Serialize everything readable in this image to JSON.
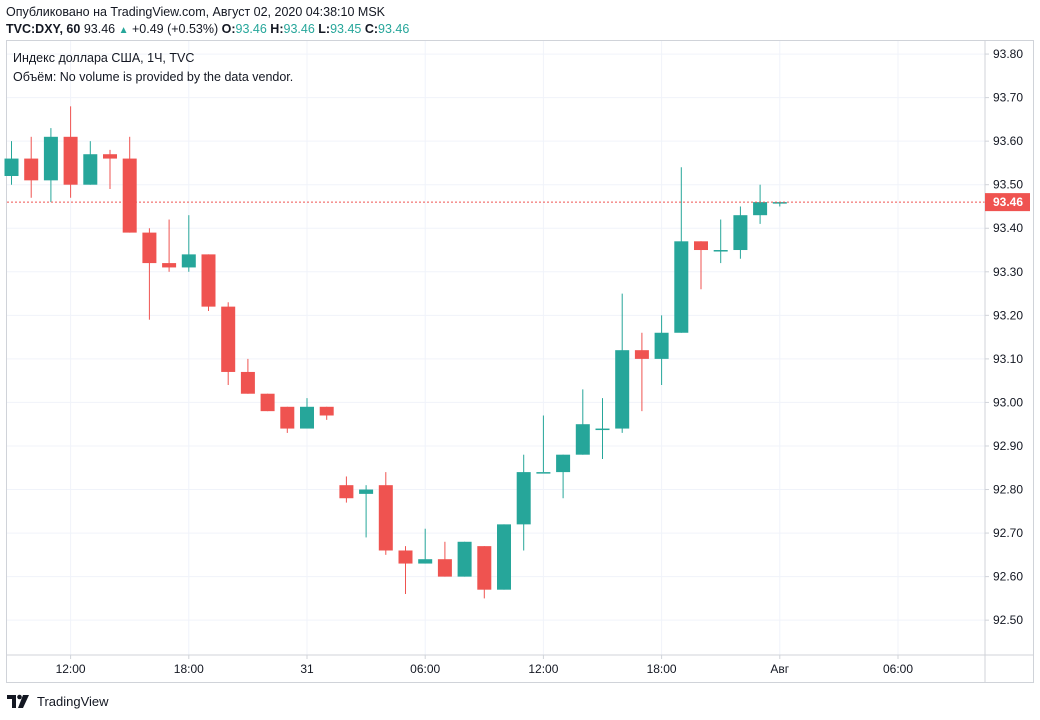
{
  "header": {
    "published": "Опубликовано на TradingView.com, Август 02, 2020 04:38:10 MSK",
    "symbol": "TVC:DXY, 60",
    "last": "93.46",
    "change": "+0.49 (+0.53%)",
    "o_label": "O:",
    "o_value": "93.46",
    "h_label": "H:",
    "h_value": "93.46",
    "l_label": "L:",
    "l_value": "93.45",
    "c_label": "C:",
    "c_value": "93.46"
  },
  "legend": {
    "series_title": "Индекс доллара США, 1Ч, TVC",
    "volume_note": "Объём: No volume is provided by the data vendor."
  },
  "footer": {
    "brand": "TradingView",
    "logo_icon": "tradingview-logo-icon"
  },
  "colors": {
    "up": "#26a69a",
    "down": "#ef5350",
    "grid": "#f0f3fa",
    "price_line": "#ef5350",
    "axis_text": "#131722"
  },
  "chart_data": {
    "type": "candlestick",
    "ylim": [
      92.42,
      93.83
    ],
    "y_ticks": [
      "93.80",
      "93.70",
      "93.60",
      "93.50",
      "93.40",
      "93.30",
      "93.20",
      "93.10",
      "93.00",
      "92.90",
      "92.80",
      "92.70",
      "92.60",
      "92.50"
    ],
    "x_tick_labels": [
      {
        "label": "12:00",
        "index": 3
      },
      {
        "label": "18:00",
        "index": 9
      },
      {
        "label": "31",
        "index": 15
      },
      {
        "label": "06:00",
        "index": 21
      },
      {
        "label": "12:00",
        "index": 27
      },
      {
        "label": "18:00",
        "index": 33
      },
      {
        "label": "Авг",
        "index": 39
      },
      {
        "label": "06:00",
        "index": 45
      }
    ],
    "last_price": 93.46,
    "last_price_label": "93.46",
    "candles": [
      {
        "o": 93.52,
        "h": 93.6,
        "l": 93.5,
        "c": 93.56
      },
      {
        "o": 93.56,
        "h": 93.61,
        "l": 93.47,
        "c": 93.51
      },
      {
        "o": 93.51,
        "h": 93.63,
        "l": 93.46,
        "c": 93.61
      },
      {
        "o": 93.61,
        "h": 93.68,
        "l": 93.47,
        "c": 93.5
      },
      {
        "o": 93.5,
        "h": 93.6,
        "l": 93.5,
        "c": 93.57
      },
      {
        "o": 93.57,
        "h": 93.58,
        "l": 93.49,
        "c": 93.56
      },
      {
        "o": 93.56,
        "h": 93.61,
        "l": 93.39,
        "c": 93.39
      },
      {
        "o": 93.39,
        "h": 93.4,
        "l": 93.19,
        "c": 93.32
      },
      {
        "o": 93.32,
        "h": 93.42,
        "l": 93.3,
        "c": 93.31
      },
      {
        "o": 93.31,
        "h": 93.43,
        "l": 93.3,
        "c": 93.34
      },
      {
        "o": 93.34,
        "h": 93.34,
        "l": 93.21,
        "c": 93.22
      },
      {
        "o": 93.22,
        "h": 93.23,
        "l": 93.04,
        "c": 93.07
      },
      {
        "o": 93.07,
        "h": 93.1,
        "l": 93.02,
        "c": 93.02
      },
      {
        "o": 93.02,
        "h": 93.02,
        "l": 92.98,
        "c": 92.98
      },
      {
        "o": 92.99,
        "h": 92.99,
        "l": 92.93,
        "c": 92.94
      },
      {
        "o": 92.94,
        "h": 93.01,
        "l": 92.94,
        "c": 92.99
      },
      {
        "o": 92.99,
        "h": 92.99,
        "l": 92.96,
        "c": 92.97
      },
      {
        "o": 92.81,
        "h": 92.83,
        "l": 92.77,
        "c": 92.78
      },
      {
        "o": 92.79,
        "h": 92.81,
        "l": 92.69,
        "c": 92.8
      },
      {
        "o": 92.81,
        "h": 92.84,
        "l": 92.65,
        "c": 92.66
      },
      {
        "o": 92.66,
        "h": 92.67,
        "l": 92.56,
        "c": 92.63
      },
      {
        "o": 92.63,
        "h": 92.71,
        "l": 92.63,
        "c": 92.64
      },
      {
        "o": 92.64,
        "h": 92.68,
        "l": 92.6,
        "c": 92.6
      },
      {
        "o": 92.6,
        "h": 92.68,
        "l": 92.6,
        "c": 92.68
      },
      {
        "o": 92.67,
        "h": 92.67,
        "l": 92.55,
        "c": 92.57
      },
      {
        "o": 92.57,
        "h": 92.72,
        "l": 92.57,
        "c": 92.72
      },
      {
        "o": 92.72,
        "h": 92.88,
        "l": 92.66,
        "c": 92.84
      },
      {
        "o": 92.84,
        "h": 92.97,
        "l": 92.84,
        "c": 92.84
      },
      {
        "o": 92.84,
        "h": 92.88,
        "l": 92.78,
        "c": 92.88
      },
      {
        "o": 92.88,
        "h": 93.03,
        "l": 92.88,
        "c": 92.95
      },
      {
        "o": 92.94,
        "h": 93.01,
        "l": 92.87,
        "c": 92.94
      },
      {
        "o": 92.94,
        "h": 93.25,
        "l": 92.93,
        "c": 93.12
      },
      {
        "o": 93.12,
        "h": 93.16,
        "l": 92.98,
        "c": 93.1
      },
      {
        "o": 93.1,
        "h": 93.2,
        "l": 93.04,
        "c": 93.16
      },
      {
        "o": 93.16,
        "h": 93.54,
        "l": 93.16,
        "c": 93.37
      },
      {
        "o": 93.37,
        "h": 93.37,
        "l": 93.26,
        "c": 93.35
      },
      {
        "o": 93.35,
        "h": 93.42,
        "l": 93.32,
        "c": 93.35
      },
      {
        "o": 93.35,
        "h": 93.45,
        "l": 93.33,
        "c": 93.43
      },
      {
        "o": 93.43,
        "h": 93.5,
        "l": 93.41,
        "c": 93.46
      },
      {
        "o": 93.46,
        "h": 93.46,
        "l": 93.45,
        "c": 93.46
      }
    ]
  }
}
